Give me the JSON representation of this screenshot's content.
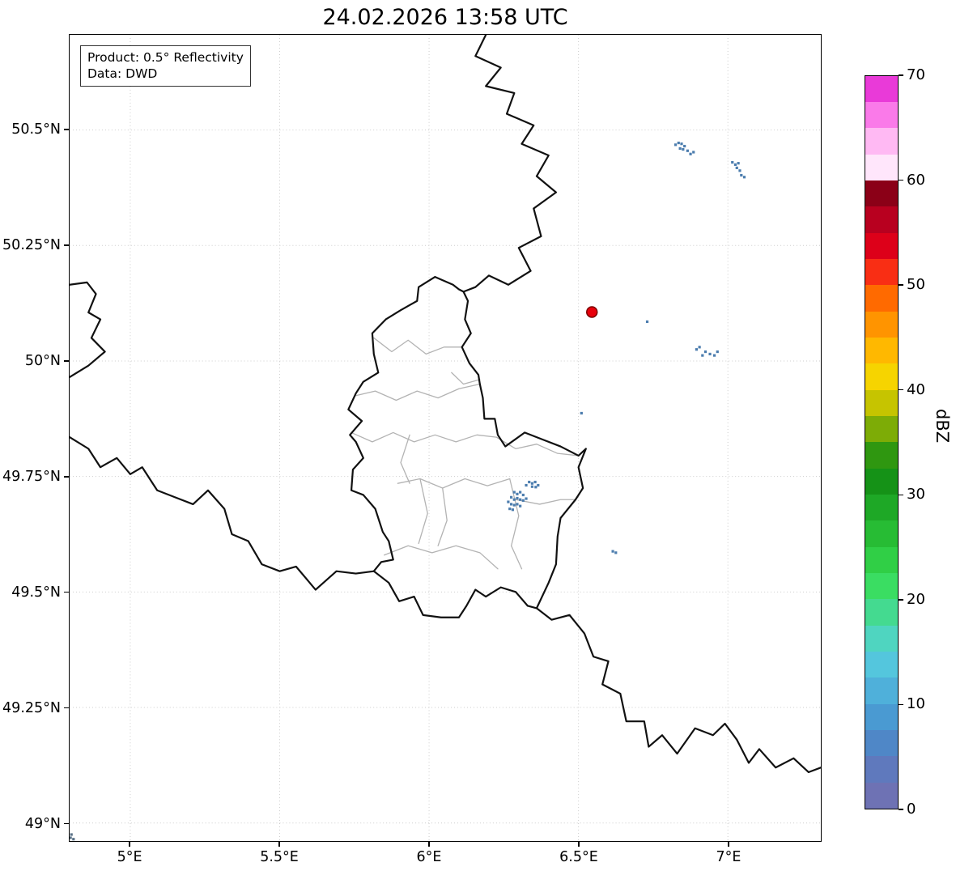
{
  "title": "24.02.2026 13:58 UTC",
  "annotation": {
    "product": "Product: 0.5° Reflectivity",
    "source": "Data: DWD"
  },
  "axes": {
    "extent": {
      "lon_min": 4.797,
      "lon_max": 7.311,
      "lat_min": 48.961,
      "lat_max": 50.706
    },
    "x_ticks": [
      {
        "value": 5.0,
        "label": "5°E"
      },
      {
        "value": 5.5,
        "label": "5.5°E"
      },
      {
        "value": 6.0,
        "label": "6°E"
      },
      {
        "value": 6.5,
        "label": "6.5°E"
      },
      {
        "value": 7.0,
        "label": "7°E"
      }
    ],
    "y_ticks": [
      {
        "value": 49.0,
        "label": "49°N"
      },
      {
        "value": 49.25,
        "label": "49.25°N"
      },
      {
        "value": 49.5,
        "label": "49.5°N"
      },
      {
        "value": 49.75,
        "label": "49.75°N"
      },
      {
        "value": 50.0,
        "label": "50°N"
      },
      {
        "value": 50.25,
        "label": "50.25°N"
      },
      {
        "value": 50.5,
        "label": "50.5°N"
      }
    ],
    "grid_color": "#cccccc"
  },
  "colorbar": {
    "label": "dBZ",
    "min": 0,
    "max": 70,
    "ticks": [
      0,
      10,
      20,
      30,
      40,
      50,
      60,
      70
    ],
    "colors": [
      "#6e72b4",
      "#5f79bd",
      "#4f87c7",
      "#4a9ad2",
      "#4fb0da",
      "#54c6dd",
      "#4fd5c0",
      "#44da90",
      "#3add62",
      "#30cf46",
      "#27bc34",
      "#1ea826",
      "#159217",
      "#2f9710",
      "#7dac06",
      "#c6c400",
      "#f6d400",
      "#ffb800",
      "#ff9400",
      "#ff6a00",
      "#f92e14",
      "#dd0019",
      "#b8001f",
      "#8b0017",
      "#ffe6fb",
      "#ffb9f3",
      "#fa7ae9",
      "#e93ad8"
    ]
  },
  "chart_data": {
    "type": "radar_map",
    "border_color": "#111111",
    "internal_border_color": "#b3b3b3",
    "radar_site": {
      "lon": 6.545,
      "lat": 50.106,
      "color": "#e8000b",
      "edge_color": "#7a0000"
    },
    "country_borders": [
      [
        [
          6.02,
          50.182
        ],
        [
          6.08,
          50.165
        ],
        [
          6.1,
          50.155
        ],
        [
          6.115,
          50.15
        ],
        [
          6.13,
          50.13
        ],
        [
          6.12,
          50.09
        ],
        [
          6.14,
          50.06
        ],
        [
          6.11,
          50.03
        ],
        [
          6.135,
          49.995
        ],
        [
          6.165,
          49.97
        ],
        [
          6.17,
          49.95
        ],
        [
          6.18,
          49.92
        ],
        [
          6.185,
          49.875
        ],
        [
          6.22,
          49.875
        ],
        [
          6.23,
          49.84
        ],
        [
          6.255,
          49.815
        ],
        [
          6.32,
          49.845
        ],
        [
          6.38,
          49.83
        ],
        [
          6.44,
          49.815
        ],
        [
          6.5,
          49.795
        ],
        [
          6.525,
          49.81
        ],
        [
          6.5,
          49.77
        ],
        [
          6.515,
          49.725
        ],
        [
          6.49,
          49.7
        ],
        [
          6.44,
          49.66
        ],
        [
          6.43,
          49.62
        ],
        [
          6.425,
          49.56
        ],
        [
          6.4,
          49.52
        ],
        [
          6.36,
          49.465
        ],
        [
          6.33,
          49.47
        ],
        [
          6.29,
          49.5
        ],
        [
          6.24,
          49.51
        ],
        [
          6.19,
          49.49
        ],
        [
          6.155,
          49.505
        ],
        [
          6.125,
          49.47
        ],
        [
          6.1,
          49.445
        ],
        [
          6.04,
          49.445
        ],
        [
          5.98,
          49.45
        ],
        [
          5.95,
          49.49
        ],
        [
          5.9,
          49.48
        ],
        [
          5.865,
          49.52
        ],
        [
          5.815,
          49.545
        ],
        [
          5.84,
          49.565
        ],
        [
          5.88,
          49.57
        ],
        [
          5.865,
          49.61
        ],
        [
          5.845,
          49.63
        ],
        [
          5.82,
          49.68
        ],
        [
          5.78,
          49.71
        ],
        [
          5.74,
          49.72
        ],
        [
          5.745,
          49.765
        ],
        [
          5.78,
          49.79
        ],
        [
          5.755,
          49.825
        ],
        [
          5.735,
          49.84
        ],
        [
          5.775,
          49.87
        ],
        [
          5.73,
          49.895
        ],
        [
          5.755,
          49.93
        ],
        [
          5.78,
          49.955
        ],
        [
          5.83,
          49.975
        ],
        [
          5.815,
          50.015
        ],
        [
          5.81,
          50.06
        ],
        [
          5.855,
          50.09
        ],
        [
          5.905,
          50.11
        ],
        [
          5.96,
          50.13
        ],
        [
          5.965,
          50.16
        ],
        [
          6.02,
          50.182
        ]
      ],
      [
        [
          6.19,
          50.706
        ],
        [
          6.155,
          50.66
        ],
        [
          6.24,
          50.635
        ],
        [
          6.19,
          50.595
        ],
        [
          6.285,
          50.58
        ],
        [
          6.26,
          50.535
        ],
        [
          6.35,
          50.51
        ],
        [
          6.31,
          50.47
        ],
        [
          6.4,
          50.445
        ],
        [
          6.36,
          50.4
        ],
        [
          6.425,
          50.365
        ],
        [
          6.35,
          50.33
        ],
        [
          6.375,
          50.27
        ],
        [
          6.3,
          50.245
        ],
        [
          6.34,
          50.195
        ],
        [
          6.265,
          50.165
        ],
        [
          6.2,
          50.185
        ],
        [
          6.155,
          50.16
        ],
        [
          6.115,
          50.15
        ]
      ],
      [
        [
          4.797,
          49.835
        ],
        [
          4.86,
          49.81
        ],
        [
          4.9,
          49.77
        ],
        [
          4.955,
          49.79
        ],
        [
          5.0,
          49.755
        ],
        [
          5.04,
          49.77
        ],
        [
          5.09,
          49.72
        ],
        [
          5.15,
          49.705
        ],
        [
          5.21,
          49.69
        ],
        [
          5.26,
          49.72
        ],
        [
          5.315,
          49.68
        ],
        [
          5.34,
          49.625
        ],
        [
          5.395,
          49.61
        ],
        [
          5.44,
          49.56
        ],
        [
          5.5,
          49.545
        ],
        [
          5.555,
          49.555
        ],
        [
          5.62,
          49.505
        ],
        [
          5.69,
          49.545
        ],
        [
          5.755,
          49.54
        ],
        [
          5.815,
          49.545
        ]
      ],
      [
        [
          4.797,
          50.165
        ],
        [
          4.855,
          50.17
        ],
        [
          4.885,
          50.145
        ],
        [
          4.86,
          50.105
        ],
        [
          4.9,
          50.09
        ],
        [
          4.87,
          50.05
        ],
        [
          4.915,
          50.02
        ],
        [
          4.86,
          49.99
        ],
        [
          4.797,
          49.965
        ]
      ],
      [
        [
          6.36,
          49.465
        ],
        [
          6.41,
          49.44
        ],
        [
          6.47,
          49.45
        ],
        [
          6.52,
          49.41
        ],
        [
          6.55,
          49.36
        ],
        [
          6.6,
          49.35
        ],
        [
          6.58,
          49.3
        ],
        [
          6.64,
          49.28
        ],
        [
          6.66,
          49.22
        ],
        [
          6.72,
          49.22
        ],
        [
          6.735,
          49.165
        ],
        [
          6.78,
          49.19
        ],
        [
          6.83,
          49.15
        ],
        [
          6.89,
          49.205
        ],
        [
          6.95,
          49.19
        ],
        [
          6.99,
          49.215
        ],
        [
          7.03,
          49.18
        ],
        [
          7.07,
          49.13
        ],
        [
          7.105,
          49.16
        ],
        [
          7.16,
          49.12
        ],
        [
          7.22,
          49.14
        ],
        [
          7.27,
          49.11
        ],
        [
          7.311,
          49.12
        ]
      ]
    ],
    "internal_borders": [
      [
        [
          5.815,
          50.05
        ],
        [
          5.875,
          50.02
        ],
        [
          5.93,
          50.045
        ],
        [
          5.99,
          50.015
        ],
        [
          6.05,
          50.03
        ],
        [
          6.11,
          50.03
        ]
      ],
      [
        [
          5.755,
          49.925
        ],
        [
          5.82,
          49.935
        ],
        [
          5.89,
          49.915
        ],
        [
          5.96,
          49.935
        ],
        [
          6.03,
          49.92
        ],
        [
          6.1,
          49.94
        ],
        [
          6.17,
          49.95
        ]
      ],
      [
        [
          6.075,
          49.975
        ],
        [
          6.115,
          49.95
        ],
        [
          6.17,
          49.96
        ]
      ],
      [
        [
          5.74,
          49.845
        ],
        [
          5.81,
          49.825
        ],
        [
          5.88,
          49.845
        ],
        [
          5.95,
          49.825
        ],
        [
          6.02,
          49.84
        ],
        [
          6.09,
          49.825
        ],
        [
          6.16,
          49.84
        ],
        [
          6.225,
          49.835
        ]
      ],
      [
        [
          5.935,
          49.84
        ],
        [
          5.905,
          49.78
        ],
        [
          5.935,
          49.735
        ]
      ],
      [
        [
          6.225,
          49.835
        ],
        [
          6.29,
          49.81
        ],
        [
          6.36,
          49.82
        ],
        [
          6.43,
          49.8
        ],
        [
          6.5,
          49.795
        ]
      ],
      [
        [
          5.895,
          49.735
        ],
        [
          5.97,
          49.745
        ],
        [
          6.045,
          49.725
        ],
        [
          6.12,
          49.745
        ],
        [
          6.195,
          49.73
        ],
        [
          6.27,
          49.745
        ]
      ],
      [
        [
          5.97,
          49.745
        ],
        [
          5.995,
          49.67
        ],
        [
          5.965,
          49.605
        ]
      ],
      [
        [
          5.85,
          49.58
        ],
        [
          5.93,
          49.6
        ],
        [
          6.01,
          49.585
        ],
        [
          6.09,
          49.6
        ],
        [
          6.17,
          49.585
        ],
        [
          6.23,
          49.55
        ]
      ],
      [
        [
          6.27,
          49.745
        ],
        [
          6.3,
          49.665
        ],
        [
          6.275,
          49.6
        ],
        [
          6.31,
          49.55
        ]
      ],
      [
        [
          6.29,
          49.7
        ],
        [
          6.37,
          49.69
        ],
        [
          6.44,
          49.7
        ],
        [
          6.49,
          49.7
        ]
      ],
      [
        [
          6.045,
          49.725
        ],
        [
          6.06,
          49.655
        ],
        [
          6.03,
          49.6
        ]
      ]
    ],
    "echoes": [
      {
        "color": "#4c7dae",
        "cells": [
          [
            6.825,
            50.468
          ],
          [
            6.835,
            50.472
          ],
          [
            6.845,
            50.47
          ],
          [
            6.855,
            50.465
          ],
          [
            6.84,
            50.46
          ],
          [
            6.85,
            50.458
          ],
          [
            6.865,
            50.455
          ],
          [
            6.875,
            50.448
          ],
          [
            6.885,
            50.452
          ]
        ]
      },
      {
        "color": "#4c7dae",
        "cells": [
          [
            7.015,
            50.43
          ],
          [
            7.025,
            50.425
          ],
          [
            7.03,
            50.418
          ],
          [
            7.04,
            50.412
          ],
          [
            7.045,
            50.402
          ],
          [
            7.055,
            50.398
          ],
          [
            7.035,
            50.428
          ]
        ]
      },
      {
        "color": "#4c7dae",
        "cells": [
          [
            6.895,
            50.025
          ],
          [
            6.905,
            50.03
          ],
          [
            6.925,
            50.02
          ],
          [
            6.94,
            50.015
          ],
          [
            6.955,
            50.012
          ],
          [
            6.915,
            50.012
          ],
          [
            6.965,
            50.02
          ]
        ]
      },
      {
        "color": "#4c7dae",
        "cells": [
          [
            6.73,
            50.085
          ]
        ]
      },
      {
        "color": "#4c7dae",
        "cells": [
          [
            6.335,
            49.738
          ],
          [
            6.345,
            49.735
          ],
          [
            6.355,
            49.738
          ],
          [
            6.345,
            49.728
          ],
          [
            6.357,
            49.727
          ],
          [
            6.365,
            49.731
          ],
          [
            6.325,
            49.731
          ],
          [
            6.285,
            49.716
          ],
          [
            6.295,
            49.712
          ],
          [
            6.305,
            49.716
          ],
          [
            6.315,
            49.71
          ],
          [
            6.275,
            49.705
          ],
          [
            6.285,
            49.7
          ],
          [
            6.295,
            49.703
          ],
          [
            6.305,
            49.7
          ],
          [
            6.315,
            49.698
          ],
          [
            6.325,
            49.702
          ],
          [
            6.265,
            49.695
          ],
          [
            6.275,
            49.69
          ],
          [
            6.285,
            49.688
          ],
          [
            6.295,
            49.69
          ],
          [
            6.305,
            49.686
          ],
          [
            6.27,
            49.68
          ],
          [
            6.28,
            49.678
          ]
        ]
      },
      {
        "color": "#4c7dae",
        "cells": [
          [
            6.51,
            49.887
          ]
        ]
      },
      {
        "color": "#4c7dae",
        "cells": [
          [
            6.615,
            49.588
          ],
          [
            6.625,
            49.585
          ]
        ]
      },
      {
        "color": "#5a7186",
        "cells": [
          [
            4.8,
            48.968
          ],
          [
            4.81,
            48.965
          ],
          [
            4.803,
            48.975
          ]
        ]
      }
    ]
  }
}
